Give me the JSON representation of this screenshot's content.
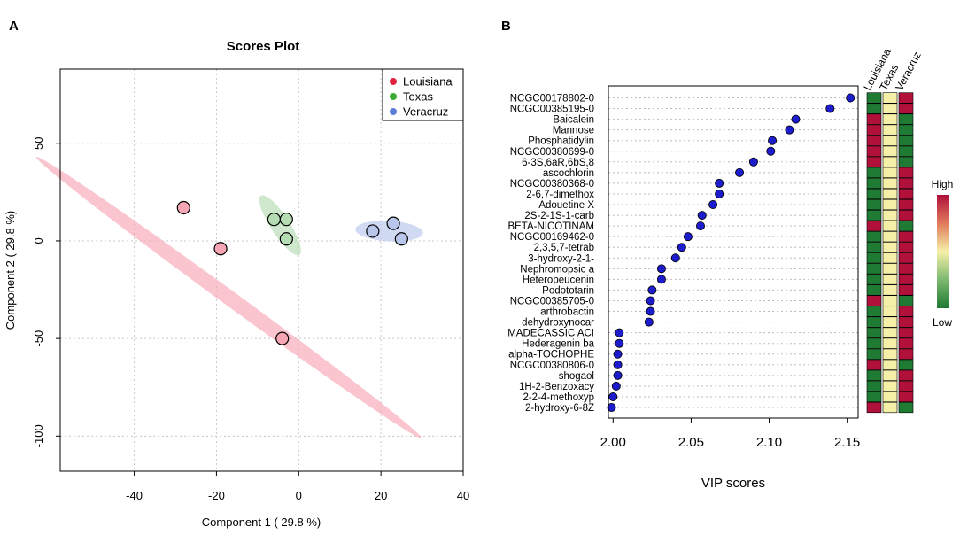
{
  "panel_labels": {
    "a": "A",
    "b": "B"
  },
  "chart_data": [
    {
      "type": "scatter",
      "title": "Scores Plot",
      "xlabel": "Component 1 ( 29.8 %)",
      "ylabel": "Component 2 ( 29.8 %)",
      "xlim": [
        -58,
        40
      ],
      "ylim": [
        -118,
        88
      ],
      "xticks": [
        -40,
        -20,
        0,
        20,
        40
      ],
      "yticks": [
        -100,
        -50,
        0,
        50
      ],
      "grid": true,
      "legend_position": "top-right",
      "series": [
        {
          "name": "Louisiana",
          "color": "#e0223f",
          "ellipse_color": "#f7a6b6",
          "points": [
            [
              -28,
              17
            ],
            [
              -19,
              -4
            ],
            [
              -4,
              -50
            ]
          ],
          "ellipse": {
            "cx": -17,
            "cy": -29,
            "semi_major": 86,
            "semi_minor": 2.6,
            "angle_deg": -57
          }
        },
        {
          "name": "Texas",
          "color": "#3aaa35",
          "ellipse_color": "#b5dcb2",
          "points": [
            [
              -6,
              11
            ],
            [
              -3,
              11
            ],
            [
              -3,
              1
            ]
          ],
          "ellipse": {
            "cx": -4.5,
            "cy": 8,
            "semi_major": 16,
            "semi_minor": 2.6,
            "angle_deg": -74
          }
        },
        {
          "name": "Veracruz",
          "color": "#5b7fd6",
          "ellipse_color": "#b9c6ec",
          "points": [
            [
              18,
              5
            ],
            [
              23,
              9
            ],
            [
              25,
              1
            ]
          ],
          "ellipse": {
            "cx": 22,
            "cy": 5,
            "semi_major": 8.3,
            "semi_minor": 5.2,
            "angle_deg": -10
          }
        }
      ]
    },
    {
      "type": "scatter",
      "xlabel": "VIP scores",
      "xlim": [
        1.997,
        2.157
      ],
      "xticks": [
        2.0,
        2.05,
        2.1,
        2.15
      ],
      "tick_labels": [
        "2.00",
        "2.05",
        "2.10",
        "2.15"
      ],
      "point_color": "#1c1ccc",
      "features": [
        {
          "name": "NCGC00178802-0",
          "vip": 2.152,
          "levels": [
            "green",
            "yellow",
            "red"
          ]
        },
        {
          "name": "NCGC00385195-0",
          "vip": 2.139,
          "levels": [
            "green",
            "yellow",
            "red"
          ]
        },
        {
          "name": "Baicalein",
          "vip": 2.117,
          "levels": [
            "red",
            "yellow",
            "green"
          ]
        },
        {
          "name": "Mannose",
          "vip": 2.113,
          "levels": [
            "red",
            "yellow",
            "green"
          ]
        },
        {
          "name": "Phosphatidylin",
          "vip": 2.102,
          "levels": [
            "red",
            "yellow",
            "green"
          ]
        },
        {
          "name": "NCGC00380699-0",
          "vip": 2.101,
          "levels": [
            "red",
            "yellow",
            "green"
          ]
        },
        {
          "name": "6-3S,6aR,6bS,8",
          "vip": 2.09,
          "levels": [
            "red",
            "yellow",
            "green"
          ]
        },
        {
          "name": "ascochlorin",
          "vip": 2.081,
          "levels": [
            "green",
            "yellow",
            "red"
          ]
        },
        {
          "name": "NCGC00380368-0",
          "vip": 2.068,
          "levels": [
            "green",
            "yellow",
            "red"
          ]
        },
        {
          "name": "2-6,7-dimethox",
          "vip": 2.068,
          "levels": [
            "green",
            "yellow",
            "red"
          ]
        },
        {
          "name": "Adouetine X",
          "vip": 2.064,
          "levels": [
            "green",
            "yellow",
            "red"
          ]
        },
        {
          "name": "2S-2-1S-1-carb",
          "vip": 2.057,
          "levels": [
            "green",
            "yellow",
            "red"
          ]
        },
        {
          "name": "BETA-NICOTINAM",
          "vip": 2.056,
          "levels": [
            "red",
            "yellow",
            "green"
          ]
        },
        {
          "name": "NCGC00169462-0",
          "vip": 2.048,
          "levels": [
            "green",
            "yellow",
            "red"
          ]
        },
        {
          "name": "2,3,5,7-tetrab",
          "vip": 2.044,
          "levels": [
            "green",
            "yellow",
            "red"
          ]
        },
        {
          "name": "3-hydroxy-2-1-",
          "vip": 2.04,
          "levels": [
            "green",
            "yellow",
            "red"
          ]
        },
        {
          "name": "Nephromopsic a",
          "vip": 2.031,
          "levels": [
            "green",
            "yellow",
            "red"
          ]
        },
        {
          "name": "Heteropeucenin",
          "vip": 2.031,
          "levels": [
            "green",
            "yellow",
            "red"
          ]
        },
        {
          "name": "Podototarin",
          "vip": 2.025,
          "levels": [
            "green",
            "yellow",
            "red"
          ]
        },
        {
          "name": "NCGC00385705-0",
          "vip": 2.024,
          "levels": [
            "red",
            "yellow",
            "green"
          ]
        },
        {
          "name": "arthrobactin",
          "vip": 2.024,
          "levels": [
            "green",
            "yellow",
            "red"
          ]
        },
        {
          "name": "dehydroxynocar",
          "vip": 2.023,
          "levels": [
            "green",
            "yellow",
            "red"
          ]
        },
        {
          "name": "MADECASSIC ACI",
          "vip": 2.004,
          "levels": [
            "green",
            "yellow",
            "red"
          ]
        },
        {
          "name": "Hederagenin ba",
          "vip": 2.004,
          "levels": [
            "green",
            "yellow",
            "red"
          ]
        },
        {
          "name": "alpha-TOCHOPHE",
          "vip": 2.003,
          "levels": [
            "green",
            "yellow",
            "red"
          ]
        },
        {
          "name": "NCGC00380806-0",
          "vip": 2.003,
          "levels": [
            "red",
            "yellow",
            "green"
          ]
        },
        {
          "name": "shogaol",
          "vip": 2.003,
          "levels": [
            "green",
            "yellow",
            "red"
          ]
        },
        {
          "name": "1H-2-Benzoxacy",
          "vip": 2.002,
          "levels": [
            "green",
            "yellow",
            "red"
          ]
        },
        {
          "name": "2-2-4-methoxyp",
          "vip": 2.0,
          "levels": [
            "green",
            "yellow",
            "red"
          ]
        },
        {
          "name": "2-hydroxy-6-8Z",
          "vip": 1.999,
          "levels": [
            "red",
            "yellow",
            "green"
          ]
        }
      ],
      "heatmap_columns": [
        "Louisiana",
        "Texas",
        "Veracruz"
      ],
      "heatmap_colors": {
        "red": "#b0103a",
        "yellow": "#f5f0a8",
        "green": "#1f7a33"
      },
      "color_key": {
        "high_label": "High",
        "low_label": "Low",
        "gradient": [
          "#b0103a",
          "#e07a5a",
          "#f5f0a8",
          "#7cb870",
          "#1f7a33"
        ]
      }
    }
  ]
}
